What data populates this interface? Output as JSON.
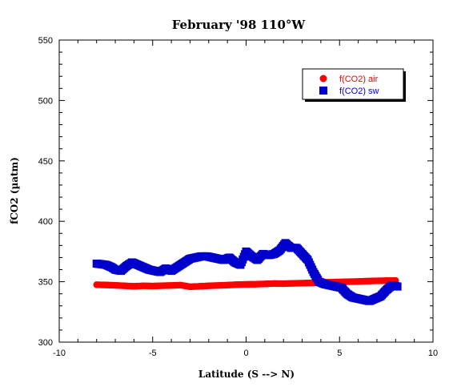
{
  "chart_data": {
    "type": "scatter",
    "title": "February '98 110°W",
    "xlabel": "Latitude (S --> N)",
    "ylabel": "fCO2 (µatm)",
    "xlim": [
      -10,
      10
    ],
    "ylim": [
      300,
      550
    ],
    "xticks": [
      -10,
      -5,
      0,
      5,
      10
    ],
    "yticks": [
      300,
      350,
      400,
      450,
      500,
      550
    ],
    "xtick_labels": [
      "-10",
      "-5",
      "0",
      "5",
      "10"
    ],
    "ytick_labels": [
      "300",
      "350",
      "400",
      "450",
      "500",
      "550"
    ],
    "legend_position": "top-right",
    "series": [
      {
        "name": "f(CO2) air",
        "marker": "circle",
        "color": "#ff0000",
        "points": [
          [
            -8.0,
            347.5
          ],
          [
            -7.5,
            347.3
          ],
          [
            -7.0,
            347.0
          ],
          [
            -6.5,
            346.6
          ],
          [
            -6.0,
            346.2
          ],
          [
            -5.5,
            346.6
          ],
          [
            -5.0,
            346.4
          ],
          [
            -4.5,
            346.7
          ],
          [
            -4.0,
            346.9
          ],
          [
            -3.5,
            347.2
          ],
          [
            -3.0,
            345.8
          ],
          [
            -2.5,
            346.2
          ],
          [
            -2.0,
            346.6
          ],
          [
            -1.5,
            346.9
          ],
          [
            -1.0,
            347.2
          ],
          [
            -0.5,
            347.6
          ],
          [
            0.0,
            347.8
          ],
          [
            0.5,
            347.9
          ],
          [
            1.0,
            348.2
          ],
          [
            1.5,
            348.5
          ],
          [
            2.0,
            348.4
          ],
          [
            2.5,
            348.6
          ],
          [
            3.0,
            348.8
          ],
          [
            3.5,
            349.0
          ],
          [
            4.0,
            349.3
          ],
          [
            4.5,
            349.6
          ],
          [
            5.0,
            349.8
          ],
          [
            5.5,
            350.0
          ],
          [
            6.0,
            350.2
          ],
          [
            6.5,
            350.5
          ],
          [
            7.0,
            350.7
          ],
          [
            7.5,
            350.9
          ],
          [
            8.0,
            351.0
          ]
        ]
      },
      {
        "name": "f(CO2) sw",
        "marker": "square",
        "color": "#0000cc",
        "points": [
          [
            -8.0,
            365
          ],
          [
            -7.5,
            364
          ],
          [
            -7.2,
            362
          ],
          [
            -7.0,
            360
          ],
          [
            -6.7,
            359
          ],
          [
            -6.4,
            363
          ],
          [
            -6.1,
            366
          ],
          [
            -5.8,
            364
          ],
          [
            -5.5,
            362
          ],
          [
            -5.2,
            360
          ],
          [
            -4.9,
            359
          ],
          [
            -4.6,
            358
          ],
          [
            -4.3,
            361
          ],
          [
            -4.0,
            359
          ],
          [
            -3.7,
            362
          ],
          [
            -3.0,
            369
          ],
          [
            -2.7,
            370
          ],
          [
            -2.4,
            371
          ],
          [
            -2.1,
            371
          ],
          [
            -1.8,
            370
          ],
          [
            -1.5,
            369
          ],
          [
            -1.2,
            368
          ],
          [
            -0.9,
            370
          ],
          [
            -0.6,
            366
          ],
          [
            -0.3,
            364
          ],
          [
            0.0,
            375
          ],
          [
            0.3,
            371
          ],
          [
            0.6,
            368
          ],
          [
            0.9,
            373
          ],
          [
            1.2,
            372
          ],
          [
            1.5,
            373
          ],
          [
            1.8,
            376
          ],
          [
            2.1,
            382
          ],
          [
            2.4,
            378
          ],
          [
            2.7,
            378
          ],
          [
            3.0,
            373
          ],
          [
            3.3,
            368
          ],
          [
            3.6,
            358
          ],
          [
            3.9,
            350
          ],
          [
            4.2,
            348
          ],
          [
            4.5,
            347
          ],
          [
            4.8,
            346
          ],
          [
            5.1,
            345
          ],
          [
            5.4,
            340
          ],
          [
            5.7,
            337
          ],
          [
            6.0,
            336
          ],
          [
            6.3,
            335
          ],
          [
            6.6,
            334
          ],
          [
            6.9,
            336
          ],
          [
            7.2,
            338
          ],
          [
            7.5,
            343
          ],
          [
            7.8,
            347
          ],
          [
            8.1,
            346
          ]
        ]
      }
    ]
  }
}
